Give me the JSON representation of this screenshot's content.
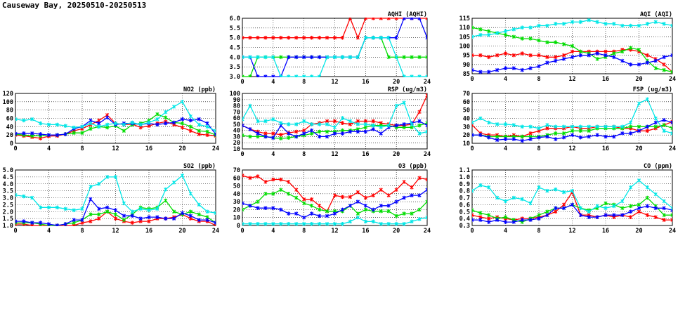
{
  "page": {
    "title": "Causeway Bay, 20250510-20250513"
  },
  "colors": {
    "red": "#ff0000",
    "green": "#00dd00",
    "blue": "#0000ff",
    "cyan": "#00e6e6"
  },
  "chart_data": [
    {
      "id": "aqhi",
      "type": "line",
      "title": "AQHI (AQHI)",
      "xlim": [
        0,
        24
      ],
      "xticks": [
        0,
        4,
        8,
        12,
        16,
        20,
        24
      ],
      "ylim": [
        3.0,
        6.0
      ],
      "yticks": [
        "3.0",
        "3.5",
        "4.0",
        "4.5",
        "5.0",
        "5.5",
        "6.0"
      ],
      "grid": true,
      "series": [
        {
          "color": "red",
          "values": [
            5,
            5,
            5,
            5,
            5,
            5,
            5,
            5,
            5,
            5,
            5,
            5,
            5,
            5,
            6,
            5,
            6,
            6,
            6,
            6,
            6,
            6,
            6,
            6,
            6
          ]
        },
        {
          "color": "green",
          "values": [
            3,
            3,
            4,
            4,
            4,
            4,
            4,
            4,
            4,
            4,
            4,
            4,
            4,
            4,
            4,
            4,
            5,
            5,
            5,
            4,
            4,
            4,
            4,
            4,
            4
          ]
        },
        {
          "color": "blue",
          "values": [
            4,
            4,
            3,
            3,
            3,
            3,
            4,
            4,
            4,
            4,
            4,
            4,
            4,
            4,
            4,
            4,
            5,
            5,
            5,
            5,
            5,
            6,
            6,
            6,
            5
          ]
        },
        {
          "color": "cyan",
          "values": [
            4,
            4,
            4,
            4,
            4,
            3,
            3,
            3,
            3,
            3,
            3,
            4,
            4,
            4,
            4,
            4,
            5,
            5,
            5,
            5,
            4,
            3,
            3,
            3,
            3
          ]
        }
      ]
    },
    {
      "id": "aqi",
      "type": "line",
      "title": "AQI (AQI)",
      "xlim": [
        0,
        24
      ],
      "xticks": [
        0,
        4,
        8,
        12,
        16,
        20,
        24
      ],
      "ylim": [
        85,
        115
      ],
      "yticks": [
        "85",
        "90",
        "95",
        "100",
        "105",
        "110",
        "115"
      ],
      "grid": true,
      "series": [
        {
          "color": "red",
          "values": [
            95,
            95,
            94,
            95,
            96,
            95,
            96,
            95,
            95,
            94,
            94,
            95,
            97,
            97,
            97,
            97,
            97,
            97,
            98,
            98,
            97,
            95,
            93,
            90,
            86
          ]
        },
        {
          "color": "green",
          "values": [
            110,
            109,
            108,
            107,
            106,
            105,
            104,
            104,
            103,
            102,
            102,
            101,
            100,
            97,
            96,
            93,
            94,
            96,
            97,
            99,
            98,
            92,
            88,
            87,
            86
          ]
        },
        {
          "color": "blue",
          "values": [
            87,
            86,
            86,
            87,
            88,
            88,
            87,
            88,
            89,
            91,
            92,
            93,
            94,
            95,
            95,
            96,
            95,
            94,
            92,
            90,
            90,
            91,
            92,
            94,
            95
          ]
        },
        {
          "color": "cyan",
          "values": [
            105,
            106,
            106,
            107,
            108,
            109,
            110,
            110,
            111,
            111,
            112,
            112,
            113,
            113,
            114,
            113,
            112,
            112,
            111,
            111,
            111,
            112,
            113,
            112,
            111
          ]
        }
      ]
    },
    {
      "id": "no2",
      "type": "line",
      "title": "NO2 (ppb)",
      "xlim": [
        0,
        24
      ],
      "xticks": [
        0,
        4,
        8,
        12,
        16,
        20,
        24
      ],
      "ylim": [
        0,
        120
      ],
      "yticks": [
        "0",
        "20",
        "40",
        "60",
        "80",
        "100",
        "120"
      ],
      "grid": true,
      "series": [
        {
          "color": "red",
          "values": [
            20,
            18,
            15,
            12,
            17,
            18,
            22,
            30,
            35,
            45,
            55,
            68,
            48,
            45,
            46,
            38,
            42,
            48,
            52,
            45,
            38,
            30,
            22,
            20,
            18
          ]
        },
        {
          "color": "green",
          "values": [
            22,
            20,
            18,
            18,
            20,
            20,
            22,
            25,
            25,
            35,
            40,
            38,
            42,
            30,
            45,
            48,
            55,
            70,
            62,
            50,
            48,
            40,
            30,
            28,
            20
          ]
        },
        {
          "color": "blue",
          "values": [
            23,
            24,
            24,
            22,
            20,
            20,
            22,
            35,
            40,
            55,
            48,
            62,
            45,
            48,
            48,
            45,
            48,
            45,
            48,
            50,
            58,
            55,
            58,
            48,
            22
          ]
        },
        {
          "color": "cyan",
          "values": [
            58,
            55,
            58,
            48,
            45,
            45,
            42,
            38,
            40,
            48,
            40,
            45,
            48,
            45,
            50,
            45,
            50,
            58,
            75,
            88,
            100,
            65,
            45,
            40,
            30
          ]
        }
      ]
    },
    {
      "id": "rsp",
      "type": "line",
      "title": "RSP (ug/m3)",
      "xlim": [
        0,
        24
      ],
      "xticks": [
        0,
        4,
        8,
        12,
        16,
        20,
        24
      ],
      "ylim": [
        10,
        100
      ],
      "yticks": [
        "10",
        "20",
        "30",
        "40",
        "50",
        "60",
        "70",
        "80",
        "90",
        "100"
      ],
      "grid": true,
      "series": [
        {
          "color": "red",
          "values": [
            48,
            42,
            38,
            35,
            35,
            33,
            36,
            38,
            40,
            50,
            52,
            55,
            55,
            52,
            50,
            55,
            55,
            55,
            52,
            50,
            48,
            48,
            50,
            70,
            97
          ]
        },
        {
          "color": "green",
          "values": [
            32,
            30,
            30,
            30,
            28,
            27,
            28,
            30,
            32,
            35,
            38,
            38,
            38,
            40,
            40,
            42,
            45,
            48,
            48,
            48,
            45,
            45,
            45,
            48,
            52
          ]
        },
        {
          "color": "blue",
          "values": [
            48,
            42,
            35,
            30,
            28,
            48,
            35,
            30,
            35,
            40,
            30,
            30,
            35,
            35,
            38,
            38,
            38,
            42,
            35,
            45,
            48,
            50,
            52,
            55,
            48
          ]
        },
        {
          "color": "cyan",
          "values": [
            58,
            80,
            55,
            55,
            58,
            52,
            50,
            50,
            55,
            50,
            50,
            50,
            45,
            60,
            55,
            50,
            50,
            48,
            45,
            48,
            80,
            85,
            50,
            35,
            38
          ]
        }
      ]
    },
    {
      "id": "fsp",
      "type": "line",
      "title": "FSP (ug/m3)",
      "xlim": [
        0,
        24
      ],
      "xticks": [
        0,
        4,
        8,
        12,
        16,
        20,
        24
      ],
      "ylim": [
        10,
        70
      ],
      "yticks": [
        "10",
        "20",
        "30",
        "40",
        "50",
        "60",
        "70"
      ],
      "grid": true,
      "series": [
        {
          "color": "red",
          "values": [
            32,
            22,
            20,
            20,
            18,
            20,
            18,
            22,
            25,
            28,
            28,
            28,
            30,
            28,
            28,
            30,
            30,
            30,
            28,
            28,
            25,
            25,
            28,
            32,
            36
          ]
        },
        {
          "color": "green",
          "values": [
            20,
            20,
            18,
            18,
            18,
            18,
            18,
            18,
            18,
            20,
            22,
            22,
            25,
            25,
            25,
            28,
            28,
            28,
            28,
            30,
            30,
            30,
            30,
            32,
            28
          ]
        },
        {
          "color": "blue",
          "values": [
            20,
            20,
            17,
            14,
            15,
            15,
            13,
            15,
            17,
            18,
            15,
            17,
            20,
            17,
            18,
            20,
            18,
            18,
            22,
            22,
            25,
            30,
            35,
            38,
            35
          ]
        },
        {
          "color": "cyan",
          "values": [
            35,
            40,
            35,
            33,
            33,
            32,
            30,
            30,
            28,
            32,
            30,
            30,
            30,
            30,
            30,
            30,
            30,
            30,
            30,
            35,
            58,
            63,
            40,
            25,
            22
          ]
        }
      ]
    },
    {
      "id": "so2",
      "type": "line",
      "title": "SO2 (ppb)",
      "xlim": [
        0,
        24
      ],
      "xticks": [
        0,
        4,
        8,
        12,
        16,
        20,
        24
      ],
      "ylim": [
        1.0,
        5.0
      ],
      "yticks": [
        "1.0",
        "1.5",
        "2.0",
        "2.5",
        "3.0",
        "3.5",
        "4.0",
        "4.5",
        "5.0"
      ],
      "grid": true,
      "series": [
        {
          "color": "red",
          "values": [
            1.1,
            1.1,
            1.0,
            1.0,
            1.0,
            1.0,
            1.0,
            1.0,
            1.2,
            1.3,
            1.5,
            2.0,
            1.5,
            1.3,
            1.2,
            1.3,
            1.3,
            1.5,
            1.5,
            1.6,
            1.8,
            1.5,
            1.3,
            1.3,
            1.0
          ]
        },
        {
          "color": "green",
          "values": [
            1.2,
            1.2,
            1.2,
            1.1,
            1.0,
            1.0,
            1.1,
            1.2,
            1.4,
            1.8,
            1.8,
            2.0,
            1.8,
            1.4,
            1.8,
            2.3,
            2.2,
            2.3,
            2.8,
            2.0,
            1.8,
            2.0,
            1.8,
            1.6,
            1.2
          ]
        },
        {
          "color": "blue",
          "values": [
            1.3,
            1.3,
            1.2,
            1.2,
            1.1,
            1.0,
            1.1,
            1.4,
            1.4,
            2.9,
            2.2,
            2.3,
            2.1,
            1.7,
            1.7,
            1.5,
            1.6,
            1.6,
            1.5,
            1.5,
            1.9,
            1.7,
            1.4,
            1.4,
            1.2
          ]
        },
        {
          "color": "cyan",
          "values": [
            3.2,
            3.1,
            3.0,
            2.3,
            2.3,
            2.3,
            2.2,
            2.1,
            2.2,
            3.8,
            4.0,
            4.5,
            4.5,
            2.6,
            2.0,
            2.2,
            2.1,
            2.2,
            3.6,
            4.1,
            4.6,
            3.3,
            2.5,
            2.0,
            1.9
          ]
        }
      ]
    },
    {
      "id": "o3",
      "type": "line",
      "title": "O3 (ppb)",
      "xlim": [
        0,
        24
      ],
      "xticks": [
        0,
        4,
        8,
        12,
        16,
        20,
        24
      ],
      "ylim": [
        0,
        70
      ],
      "yticks": [
        "0",
        "10",
        "20",
        "30",
        "40",
        "50",
        "60",
        "70"
      ],
      "grid": true,
      "series": [
        {
          "color": "red",
          "values": [
            63,
            60,
            62,
            55,
            58,
            58,
            55,
            45,
            33,
            33,
            25,
            18,
            38,
            36,
            36,
            42,
            35,
            38,
            45,
            38,
            45,
            55,
            48,
            60,
            58
          ]
        },
        {
          "color": "green",
          "values": [
            20,
            25,
            30,
            40,
            40,
            45,
            40,
            35,
            28,
            25,
            20,
            18,
            18,
            18,
            25,
            15,
            20,
            18,
            18,
            18,
            12,
            15,
            15,
            20,
            30
          ]
        },
        {
          "color": "blue",
          "values": [
            28,
            25,
            22,
            22,
            22,
            20,
            15,
            15,
            10,
            15,
            12,
            12,
            15,
            20,
            25,
            30,
            25,
            20,
            25,
            25,
            30,
            35,
            38,
            38,
            45
          ]
        },
        {
          "color": "cyan",
          "values": [
            2,
            2,
            2,
            2,
            2,
            2,
            2,
            2,
            2,
            2,
            2,
            2,
            2,
            2,
            5,
            10,
            5,
            5,
            2,
            2,
            2,
            2,
            5,
            8,
            10
          ]
        }
      ]
    },
    {
      "id": "co",
      "type": "line",
      "title": "CO (ppm)",
      "xlim": [
        0,
        24
      ],
      "xticks": [
        0,
        4,
        8,
        12,
        16,
        20,
        24
      ],
      "ylim": [
        0.3,
        1.1
      ],
      "yticks": [
        "0.3",
        "0.4",
        "0.5",
        "0.6",
        "0.7",
        "0.8",
        "0.9",
        "1.0",
        "1.1"
      ],
      "grid": true,
      "series": [
        {
          "color": "red",
          "values": [
            0.45,
            0.42,
            0.4,
            0.42,
            0.4,
            0.38,
            0.4,
            0.4,
            0.42,
            0.45,
            0.5,
            0.6,
            0.78,
            0.45,
            0.45,
            0.42,
            0.45,
            0.42,
            0.45,
            0.42,
            0.5,
            0.45,
            0.42,
            0.38,
            0.38
          ]
        },
        {
          "color": "green",
          "values": [
            0.52,
            0.48,
            0.45,
            0.4,
            0.42,
            0.38,
            0.35,
            0.4,
            0.45,
            0.5,
            0.55,
            0.55,
            0.6,
            0.55,
            0.52,
            0.55,
            0.62,
            0.6,
            0.55,
            0.58,
            0.6,
            0.7,
            0.58,
            0.45,
            0.45
          ]
        },
        {
          "color": "blue",
          "values": [
            0.38,
            0.38,
            0.35,
            0.38,
            0.35,
            0.35,
            0.38,
            0.38,
            0.4,
            0.45,
            0.55,
            0.55,
            0.6,
            0.45,
            0.42,
            0.42,
            0.45,
            0.45,
            0.45,
            0.5,
            0.55,
            0.58,
            0.55,
            0.55,
            0.52
          ]
        },
        {
          "color": "cyan",
          "values": [
            0.8,
            0.88,
            0.85,
            0.7,
            0.65,
            0.7,
            0.68,
            0.62,
            0.85,
            0.8,
            0.82,
            0.78,
            0.8,
            0.55,
            0.5,
            0.58,
            0.55,
            0.58,
            0.65,
            0.85,
            0.95,
            0.85,
            0.75,
            0.65,
            0.55
          ]
        }
      ]
    }
  ]
}
